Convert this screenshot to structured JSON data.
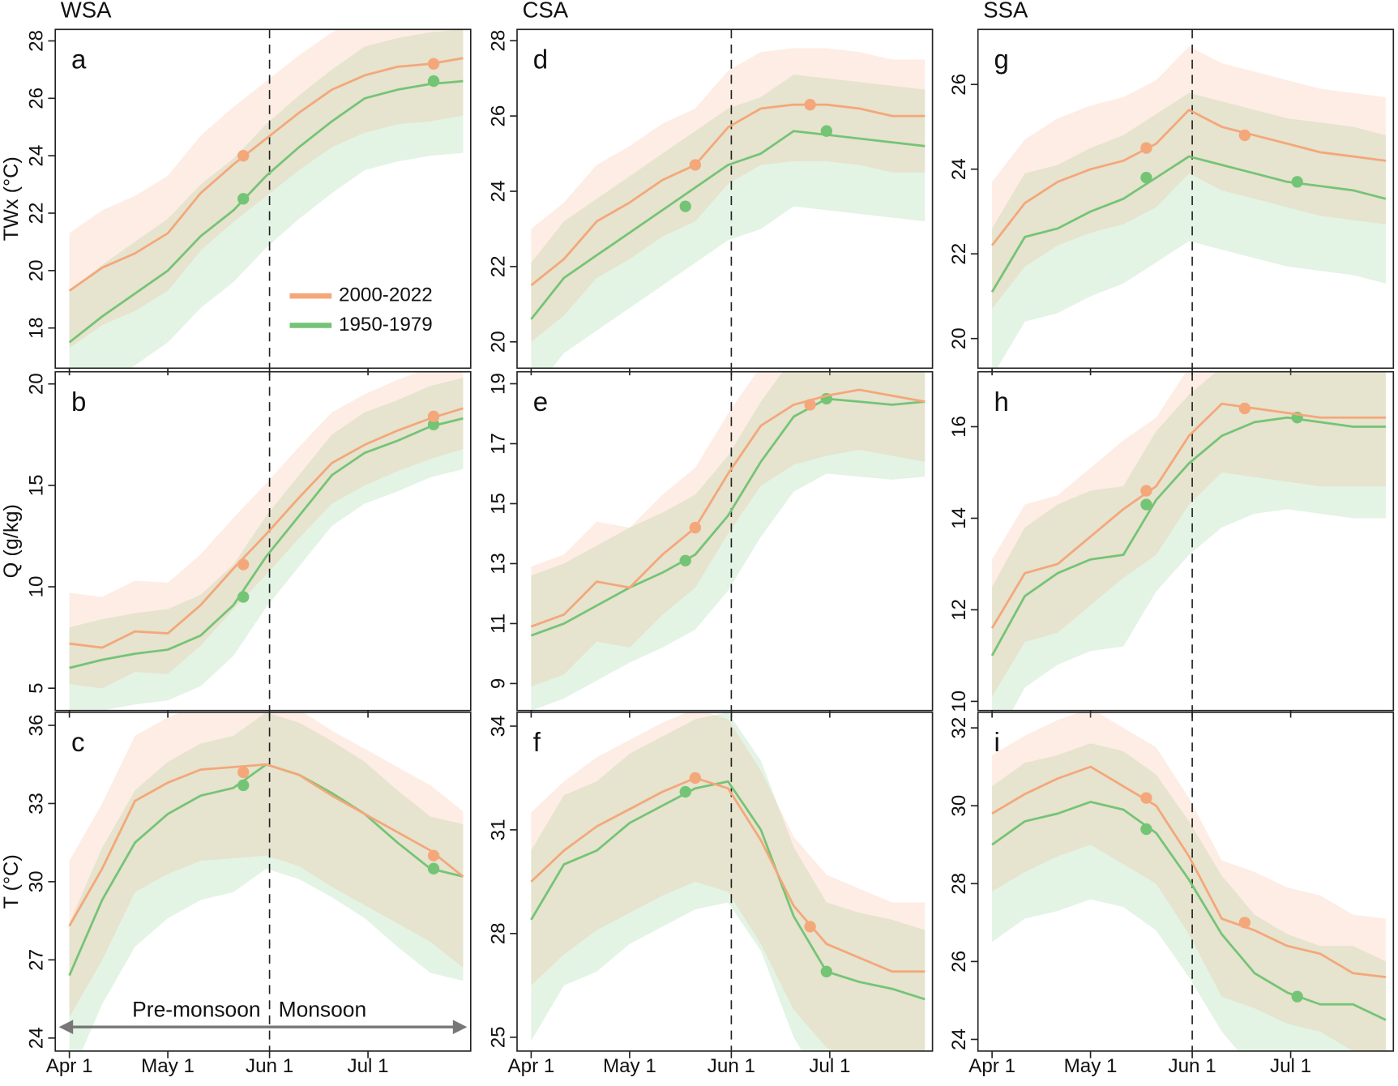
{
  "x": [
    0,
    10,
    20,
    30,
    40,
    50,
    60,
    70,
    80,
    90,
    100,
    110,
    120
  ],
  "xlim": [
    -4.3,
    122.3
  ],
  "xticks": [
    {
      "value": 0,
      "label": "Apr 1"
    },
    {
      "value": 30,
      "label": "May 1"
    },
    {
      "value": 61,
      "label": "Jun 1"
    },
    {
      "value": 91,
      "label": "Jul 1"
    }
  ],
  "onset": 61,
  "legend": [
    {
      "name": "2000-2022",
      "color": "#f4a77a"
    },
    {
      "name": "1950-1979",
      "color": "#74c476"
    }
  ],
  "chart_data": [
    {
      "type": "line",
      "title": "WSA",
      "label": "a",
      "ylabel": "TWx (°C)",
      "ylim": [
        16.6,
        28.4
      ],
      "yticks": [
        18,
        20,
        22,
        24,
        26,
        28
      ],
      "series": [
        {
          "values": [
            19.3,
            20.1,
            20.6,
            21.3,
            22.7,
            23.7,
            24.6,
            25.5,
            26.3,
            26.8,
            27.1,
            27.2,
            27.4
          ],
          "high": [
            21.3,
            22.1,
            22.6,
            23.3,
            24.7,
            25.7,
            26.6,
            27.5,
            28.3,
            28.8,
            29.1,
            29.2,
            29.4
          ],
          "low": [
            17.3,
            18.1,
            18.6,
            19.3,
            20.7,
            21.7,
            22.6,
            23.5,
            24.3,
            24.8,
            25.1,
            25.2,
            25.4
          ],
          "marker_x": [
            53,
            111
          ],
          "marker_y": [
            24.0,
            27.2
          ]
        },
        {
          "values": [
            17.5,
            18.4,
            19.2,
            20.0,
            21.2,
            22.1,
            23.3,
            24.3,
            25.2,
            26.0,
            26.3,
            26.5,
            26.6
          ],
          "high": [
            19.3,
            20.2,
            21.0,
            21.8,
            23.0,
            23.9,
            25.1,
            26.1,
            27.0,
            27.8,
            28.1,
            28.3,
            28.4
          ],
          "low": [
            15.0,
            15.9,
            16.7,
            17.5,
            18.7,
            19.6,
            20.8,
            21.8,
            22.7,
            23.5,
            23.8,
            24.0,
            24.1
          ],
          "marker_x": [
            53,
            111
          ],
          "marker_y": [
            22.5,
            26.6
          ]
        }
      ]
    },
    {
      "type": "line",
      "label": "b",
      "ylabel": "Q (g/kg)",
      "ylim": [
        3.9,
        20.6
      ],
      "yticks": [
        5,
        10,
        15,
        20
      ],
      "series": [
        {
          "values": [
            7.2,
            7.0,
            7.8,
            7.7,
            9.1,
            10.9,
            12.6,
            14.4,
            16.1,
            17.0,
            17.7,
            18.3,
            18.8
          ],
          "high": [
            9.7,
            9.5,
            10.3,
            10.2,
            11.6,
            13.4,
            15.1,
            16.9,
            18.6,
            19.5,
            20.2,
            20.8,
            21.3
          ],
          "low": [
            5.2,
            5.0,
            5.8,
            5.7,
            7.1,
            8.9,
            10.6,
            12.4,
            14.1,
            15.0,
            15.7,
            16.3,
            16.8
          ],
          "marker_x": [
            53,
            111
          ],
          "marker_y": [
            11.1,
            18.4
          ]
        },
        {
          "values": [
            6.0,
            6.4,
            6.7,
            6.9,
            7.6,
            9.1,
            11.5,
            13.5,
            15.5,
            16.6,
            17.2,
            17.9,
            18.3
          ],
          "high": [
            8.0,
            8.4,
            8.7,
            8.9,
            9.6,
            11.1,
            13.5,
            15.5,
            17.5,
            18.6,
            19.2,
            19.9,
            20.3
          ],
          "low": [
            3.5,
            3.9,
            4.2,
            4.4,
            5.1,
            6.6,
            9.0,
            11.0,
            13.0,
            14.1,
            14.7,
            15.4,
            15.8
          ],
          "marker_x": [
            53,
            111
          ],
          "marker_y": [
            9.5,
            18.0
          ]
        }
      ]
    },
    {
      "type": "line",
      "label": "c",
      "ylabel": "T (°C)",
      "ylim": [
        23.5,
        36.5
      ],
      "yticks": [
        24,
        27,
        30,
        33,
        36
      ],
      "annotations": [
        "Pre-monsoon",
        "Monsoon"
      ],
      "series": [
        {
          "values": [
            28.3,
            30.5,
            33.1,
            33.8,
            34.3,
            34.4,
            34.5,
            34.1,
            33.3,
            32.6,
            31.9,
            31.2,
            30.2
          ],
          "high": [
            30.8,
            33.0,
            35.6,
            36.3,
            36.8,
            36.9,
            37.0,
            36.6,
            35.8,
            35.1,
            34.4,
            33.7,
            32.7
          ],
          "low": [
            24.8,
            27.0,
            29.6,
            30.3,
            30.8,
            30.9,
            31.0,
            30.6,
            29.8,
            29.1,
            28.4,
            27.7,
            26.7
          ],
          "marker_x": [
            53,
            111
          ],
          "marker_y": [
            34.2,
            31.0
          ]
        },
        {
          "values": [
            26.4,
            29.3,
            31.5,
            32.6,
            33.3,
            33.6,
            34.5,
            34.1,
            33.4,
            32.6,
            31.5,
            30.5,
            30.2
          ],
          "high": [
            28.4,
            31.3,
            33.5,
            34.6,
            35.3,
            35.6,
            36.5,
            36.1,
            35.4,
            34.6,
            33.5,
            32.5,
            32.2
          ],
          "low": [
            22.4,
            25.3,
            27.5,
            28.6,
            29.3,
            29.6,
            30.5,
            30.1,
            29.4,
            28.6,
            27.5,
            26.5,
            26.2
          ],
          "marker_x": [
            53,
            111
          ],
          "marker_y": [
            33.7,
            30.5
          ]
        }
      ]
    },
    {
      "type": "line",
      "title": "CSA",
      "label": "d",
      "ylim": [
        19.3,
        28.3
      ],
      "yticks": [
        20,
        22,
        24,
        26,
        28
      ],
      "series": [
        {
          "values": [
            21.5,
            22.2,
            23.2,
            23.7,
            24.3,
            24.7,
            25.7,
            26.2,
            26.3,
            26.3,
            26.2,
            26.0,
            26.0
          ],
          "high": [
            23.0,
            23.7,
            24.7,
            25.2,
            25.8,
            26.2,
            27.2,
            27.7,
            27.8,
            27.8,
            27.7,
            27.5,
            27.5
          ],
          "low": [
            20.0,
            20.7,
            21.7,
            22.2,
            22.8,
            23.2,
            24.2,
            24.7,
            24.8,
            24.8,
            24.7,
            24.5,
            24.5
          ],
          "marker_x": [
            50,
            85
          ],
          "marker_y": [
            24.7,
            26.3
          ]
        },
        {
          "values": [
            20.6,
            21.7,
            22.3,
            22.9,
            23.5,
            24.1,
            24.7,
            25.0,
            25.6,
            25.5,
            25.4,
            25.3,
            25.2
          ],
          "high": [
            22.1,
            23.2,
            23.8,
            24.4,
            25.0,
            25.6,
            26.2,
            26.5,
            27.1,
            27.0,
            26.9,
            26.8,
            26.7
          ],
          "low": [
            18.6,
            19.7,
            20.3,
            20.9,
            21.5,
            22.1,
            22.7,
            23.0,
            23.6,
            23.5,
            23.4,
            23.3,
            23.2
          ],
          "marker_x": [
            47,
            90
          ],
          "marker_y": [
            23.6,
            25.6
          ]
        }
      ]
    },
    {
      "type": "line",
      "label": "e",
      "ylim": [
        8.1,
        19.4
      ],
      "yticks": [
        9,
        11,
        13,
        15,
        17,
        19
      ],
      "series": [
        {
          "values": [
            10.9,
            11.3,
            12.4,
            12.2,
            13.3,
            14.2,
            16.0,
            17.6,
            18.3,
            18.6,
            18.8,
            18.6,
            18.4
          ],
          "high": [
            12.9,
            13.3,
            14.4,
            14.2,
            15.3,
            16.2,
            18.0,
            19.6,
            20.3,
            20.6,
            20.8,
            20.6,
            20.4
          ],
          "low": [
            8.9,
            9.3,
            10.4,
            10.2,
            11.3,
            12.2,
            14.0,
            15.6,
            16.3,
            16.6,
            16.8,
            16.6,
            16.4
          ],
          "marker_x": [
            50,
            85
          ],
          "marker_y": [
            14.2,
            18.3
          ]
        },
        {
          "values": [
            10.6,
            11.0,
            11.6,
            12.2,
            12.7,
            13.3,
            14.6,
            16.4,
            17.9,
            18.5,
            18.4,
            18.3,
            18.4
          ],
          "high": [
            12.6,
            13.0,
            13.6,
            14.2,
            14.7,
            15.3,
            16.6,
            18.4,
            19.9,
            20.5,
            20.4,
            20.3,
            20.4
          ],
          "low": [
            8.1,
            8.5,
            9.1,
            9.7,
            10.2,
            10.8,
            12.1,
            13.9,
            15.4,
            16.0,
            15.9,
            15.8,
            15.9
          ],
          "marker_x": [
            47,
            90
          ],
          "marker_y": [
            13.1,
            18.5
          ]
        }
      ]
    },
    {
      "type": "line",
      "label": "f",
      "ylim": [
        24.6,
        34.4
      ],
      "yticks": [
        25,
        28,
        31,
        34
      ],
      "series": [
        {
          "values": [
            29.5,
            30.4,
            31.1,
            31.6,
            32.1,
            32.5,
            32.2,
            30.7,
            28.8,
            27.7,
            27.3,
            26.9,
            26.9
          ],
          "high": [
            31.5,
            32.4,
            33.1,
            33.6,
            34.1,
            34.5,
            34.2,
            32.7,
            30.8,
            29.7,
            29.3,
            28.9,
            28.9
          ],
          "low": [
            26.5,
            27.4,
            28.1,
            28.6,
            29.1,
            29.5,
            29.2,
            27.7,
            25.8,
            24.7,
            24.3,
            23.9,
            23.9
          ],
          "marker_x": [
            50,
            85
          ],
          "marker_y": [
            32.5,
            28.2
          ]
        },
        {
          "values": [
            28.4,
            30.0,
            30.4,
            31.2,
            31.7,
            32.2,
            32.4,
            31.0,
            28.5,
            26.9,
            26.6,
            26.4,
            26.1
          ],
          "high": [
            30.4,
            32.0,
            32.4,
            33.2,
            33.7,
            34.2,
            34.4,
            33.0,
            30.5,
            28.9,
            28.6,
            28.4,
            28.1
          ],
          "low": [
            24.9,
            26.5,
            26.9,
            27.7,
            28.2,
            28.7,
            28.9,
            27.5,
            25.0,
            23.4,
            23.1,
            22.9,
            22.6
          ],
          "marker_x": [
            47,
            90
          ],
          "marker_y": [
            32.1,
            26.9
          ]
        }
      ]
    },
    {
      "type": "line",
      "title": "SSA",
      "label": "g",
      "ylim": [
        19.3,
        27.3
      ],
      "yticks": [
        20,
        22,
        24,
        26
      ],
      "series": [
        {
          "values": [
            22.2,
            23.2,
            23.7,
            24.0,
            24.2,
            24.6,
            25.4,
            25.0,
            24.8,
            24.6,
            24.4,
            24.3,
            24.2
          ],
          "high": [
            23.7,
            24.7,
            25.2,
            25.5,
            25.7,
            26.1,
            26.9,
            26.5,
            26.3,
            26.1,
            25.9,
            25.8,
            25.7
          ],
          "low": [
            20.7,
            21.7,
            22.2,
            22.5,
            22.7,
            23.1,
            23.9,
            23.5,
            23.3,
            23.1,
            22.9,
            22.8,
            22.7
          ],
          "marker_x": [
            47,
            77
          ],
          "marker_y": [
            24.5,
            24.8
          ]
        },
        {
          "values": [
            21.1,
            22.4,
            22.6,
            23.0,
            23.3,
            23.8,
            24.3,
            24.1,
            23.9,
            23.7,
            23.6,
            23.5,
            23.3
          ],
          "high": [
            22.6,
            23.9,
            24.1,
            24.5,
            24.8,
            25.3,
            25.8,
            25.6,
            25.4,
            25.2,
            25.1,
            25.0,
            24.8
          ],
          "low": [
            19.1,
            20.4,
            20.6,
            21.0,
            21.3,
            21.8,
            22.3,
            22.1,
            21.9,
            21.7,
            21.6,
            21.5,
            21.3
          ],
          "marker_x": [
            47,
            93
          ],
          "marker_y": [
            23.8,
            23.7
          ]
        }
      ]
    },
    {
      "type": "line",
      "label": "h",
      "ylim": [
        9.8,
        17.2
      ],
      "yticks": [
        10,
        12,
        14,
        16
      ],
      "series": [
        {
          "values": [
            11.6,
            12.8,
            13.0,
            13.6,
            14.2,
            14.7,
            15.8,
            16.5,
            16.4,
            16.3,
            16.2,
            16.2,
            16.2
          ],
          "high": [
            13.1,
            14.3,
            14.5,
            15.1,
            15.7,
            16.2,
            17.3,
            18.0,
            17.9,
            17.8,
            17.7,
            17.7,
            17.7
          ],
          "low": [
            10.1,
            11.3,
            11.5,
            12.1,
            12.7,
            13.2,
            14.3,
            15.0,
            14.9,
            14.8,
            14.7,
            14.7,
            14.7
          ],
          "marker_x": [
            47,
            77
          ],
          "marker_y": [
            14.6,
            16.4
          ]
        },
        {
          "values": [
            11.0,
            12.3,
            12.8,
            13.1,
            13.2,
            14.4,
            15.2,
            15.8,
            16.1,
            16.2,
            16.1,
            16.0,
            16.0
          ],
          "high": [
            12.5,
            13.8,
            14.3,
            14.6,
            14.7,
            15.9,
            16.7,
            17.3,
            17.6,
            17.7,
            17.6,
            17.5,
            17.5
          ],
          "low": [
            9.0,
            10.3,
            10.8,
            11.1,
            11.2,
            12.4,
            13.2,
            13.8,
            14.1,
            14.2,
            14.1,
            14.0,
            14.0
          ],
          "marker_x": [
            47,
            93
          ],
          "marker_y": [
            14.3,
            16.2
          ]
        }
      ]
    },
    {
      "type": "line",
      "label": "i",
      "ylim": [
        23.7,
        32.4
      ],
      "yticks": [
        24,
        26,
        28,
        30,
        32
      ],
      "series": [
        {
          "values": [
            29.8,
            30.3,
            30.7,
            31.0,
            30.5,
            30.0,
            28.7,
            27.1,
            26.8,
            26.4,
            26.2,
            25.7,
            25.6
          ],
          "high": [
            31.3,
            31.8,
            32.2,
            32.5,
            32.0,
            31.5,
            30.2,
            28.6,
            28.3,
            27.9,
            27.7,
            27.2,
            27.1
          ],
          "low": [
            27.8,
            28.3,
            28.7,
            29.0,
            28.5,
            28.0,
            26.7,
            25.1,
            24.8,
            24.4,
            24.2,
            23.7,
            23.6
          ],
          "marker_x": [
            47,
            77
          ],
          "marker_y": [
            30.2,
            27.0
          ]
        },
        {
          "values": [
            29.0,
            29.6,
            29.8,
            30.1,
            29.9,
            29.3,
            28.1,
            26.7,
            25.7,
            25.2,
            24.9,
            24.9,
            24.5
          ],
          "high": [
            30.5,
            31.1,
            31.3,
            31.6,
            31.4,
            30.8,
            29.6,
            28.2,
            27.2,
            26.7,
            26.4,
            26.4,
            26.0
          ],
          "low": [
            26.5,
            27.1,
            27.3,
            27.6,
            27.4,
            26.8,
            25.6,
            24.2,
            23.2,
            22.7,
            22.4,
            22.4,
            22.0
          ],
          "marker_x": [
            47,
            93
          ],
          "marker_y": [
            29.4,
            25.1
          ]
        }
      ]
    }
  ]
}
